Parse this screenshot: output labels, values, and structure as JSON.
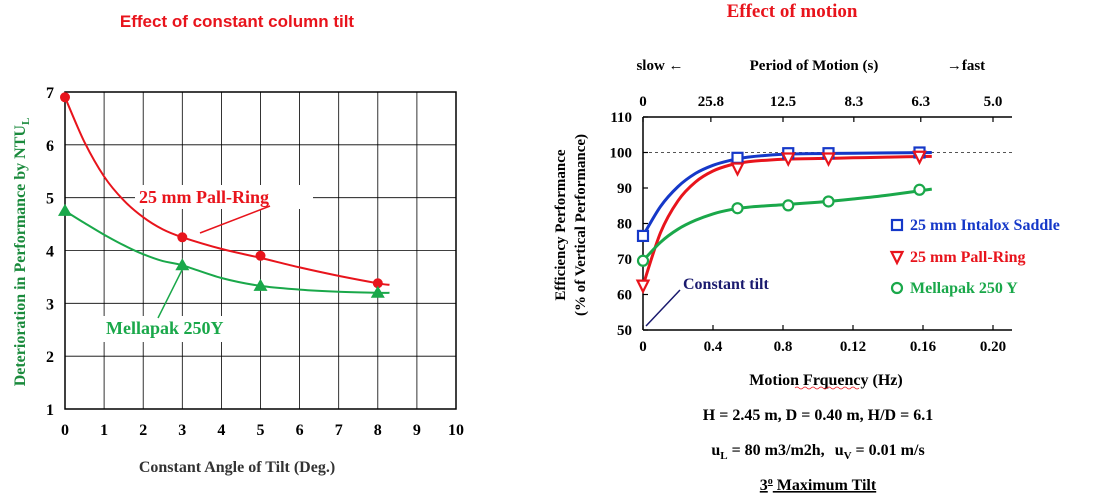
{
  "chart_data": [
    {
      "type": "line",
      "title": "Effect of constant column tilt",
      "xlabel": "Constant Angle of Tilt (Deg.)",
      "ylabel": "Deterioration in Performance by NTU",
      "ylabel_sub": "L",
      "xlim": [
        0,
        10
      ],
      "ylim": [
        1,
        7
      ],
      "x_ticks": [
        "0",
        "1",
        "2",
        "3",
        "4",
        "5",
        "6",
        "7",
        "8",
        "9",
        "10"
      ],
      "y_ticks": [
        "1",
        "2",
        "3",
        "4",
        "5",
        "6",
        "7"
      ],
      "grid": true,
      "series": [
        {
          "name": "25 mm Pall-Ring",
          "color": "#e8141c",
          "marker": "circle",
          "points": [
            [
              0,
              6.9
            ],
            [
              3,
              4.25
            ],
            [
              5,
              3.9
            ],
            [
              8,
              3.38
            ]
          ],
          "curve": [
            [
              0,
              6.9
            ],
            [
              0.5,
              6.05
            ],
            [
              1,
              5.4
            ],
            [
              1.5,
              4.95
            ],
            [
              2,
              4.63
            ],
            [
              2.5,
              4.4
            ],
            [
              3,
              4.25
            ],
            [
              4,
              4.03
            ],
            [
              5,
              3.86
            ],
            [
              6,
              3.68
            ],
            [
              7,
              3.52
            ],
            [
              8,
              3.38
            ],
            [
              8.3,
              3.35
            ]
          ]
        },
        {
          "name": "Mellapak 250Y",
          "color": "#1aa84a",
          "marker": "triangle",
          "points": [
            [
              0,
              4.75
            ],
            [
              3,
              3.72
            ],
            [
              5,
              3.33
            ],
            [
              8,
              3.2
            ]
          ],
          "curve": [
            [
              0,
              4.75
            ],
            [
              0.5,
              4.52
            ],
            [
              1,
              4.3
            ],
            [
              1.5,
              4.1
            ],
            [
              2,
              3.93
            ],
            [
              2.5,
              3.8
            ],
            [
              3,
              3.72
            ],
            [
              4,
              3.48
            ],
            [
              5,
              3.33
            ],
            [
              6,
              3.26
            ],
            [
              7,
              3.22
            ],
            [
              8,
              3.2
            ],
            [
              8.3,
              3.2
            ]
          ]
        }
      ],
      "annotations": [
        "25 mm Pall-Ring",
        "Mellapak 250Y"
      ]
    },
    {
      "type": "line",
      "title": "Effect of motion",
      "xlabel": "Motion Frquency (Hz)",
      "ylabel": "Efficiency Performance",
      "ylabel2": "(% of Vertical Performance)",
      "xlim": [
        0,
        0.2
      ],
      "ylim": [
        50,
        110
      ],
      "x_ticks": [
        "0",
        "0.4",
        "0.8",
        "0.12",
        "0.16",
        "0.20"
      ],
      "y_ticks": [
        "50",
        "60",
        "70",
        "80",
        "90",
        "100",
        "110"
      ],
      "top_axis": {
        "label": "Period of Motion (s)",
        "left_label": "slow ←",
        "right_label": "→fast",
        "ticks": [
          "0",
          "25.8",
          "12.5",
          "8.3",
          "6.3",
          "5.0"
        ],
        "tick_positions": [
          0,
          0.03878,
          0.08,
          0.12048,
          0.15873,
          0.2
        ]
      },
      "reference_line": 100,
      "series": [
        {
          "name": "25 mm Intalox Saddle",
          "color": "#1538c8",
          "marker": "square",
          "points": [
            [
              0,
              76.5
            ],
            [
              0.054,
              98.5
            ],
            [
              0.083,
              99.8
            ],
            [
              0.106,
              99.8
            ],
            [
              0.158,
              100
            ]
          ],
          "curve": [
            [
              0,
              76.5
            ],
            [
              0.01,
              84.8
            ],
            [
              0.02,
              90.4
            ],
            [
              0.03,
              94.1
            ],
            [
              0.04,
              96.4
            ],
            [
              0.05,
              97.8
            ],
            [
              0.06,
              98.7
            ],
            [
              0.08,
              99.5
            ],
            [
              0.1,
              99.7
            ],
            [
              0.12,
              99.8
            ],
            [
              0.14,
              99.9
            ],
            [
              0.165,
              100
            ]
          ]
        },
        {
          "name": "25 mm Pall-Ring",
          "color": "#e8141c",
          "marker": "triangle-down",
          "points": [
            [
              0,
              62.5
            ],
            [
              0.054,
              95.5
            ],
            [
              0.083,
              98.3
            ],
            [
              0.106,
              98.3
            ],
            [
              0.158,
              98.8
            ]
          ],
          "curve": [
            [
              0,
              62.5
            ],
            [
              0.01,
              77.4
            ],
            [
              0.02,
              86.4
            ],
            [
              0.03,
              91.7
            ],
            [
              0.04,
              94.8
            ],
            [
              0.05,
              96.5
            ],
            [
              0.06,
              97.4
            ],
            [
              0.08,
              98.1
            ],
            [
              0.1,
              98.3
            ],
            [
              0.12,
              98.5
            ],
            [
              0.14,
              98.7
            ],
            [
              0.165,
              98.9
            ]
          ]
        },
        {
          "name": "Mellapak 250 Y",
          "color": "#1aa84a",
          "marker": "circle",
          "points": [
            [
              0,
              69.5
            ],
            [
              0.054,
              84.3
            ],
            [
              0.083,
              85.1
            ],
            [
              0.106,
              86.2
            ],
            [
              0.158,
              89.5
            ]
          ],
          "curve": [
            [
              0,
              69.5
            ],
            [
              0.01,
              74.7
            ],
            [
              0.02,
              78.4
            ],
            [
              0.03,
              80.9
            ],
            [
              0.04,
              82.7
            ],
            [
              0.05,
              83.9
            ],
            [
              0.06,
              84.6
            ],
            [
              0.08,
              85.3
            ],
            [
              0.1,
              86.0
            ],
            [
              0.12,
              86.9
            ],
            [
              0.14,
              88.0
            ],
            [
              0.165,
              89.7
            ]
          ]
        }
      ],
      "annotations": [
        "Constant tilt"
      ],
      "notes": {
        "dims": "H = 2.45 m, D = 0.40 m, H/D = 6.1",
        "flow_uL": "u",
        "flow_uL_sub": "L",
        "flow_uL_rest": " = 80 m3/m2h,",
        "flow_uV": "u",
        "flow_uV_sub": "V",
        "flow_uV_rest": " =  0.01 m/s",
        "tilt_num": "3",
        "tilt_deg": "o",
        "tilt_rest": " Maximum Tilt"
      }
    }
  ]
}
